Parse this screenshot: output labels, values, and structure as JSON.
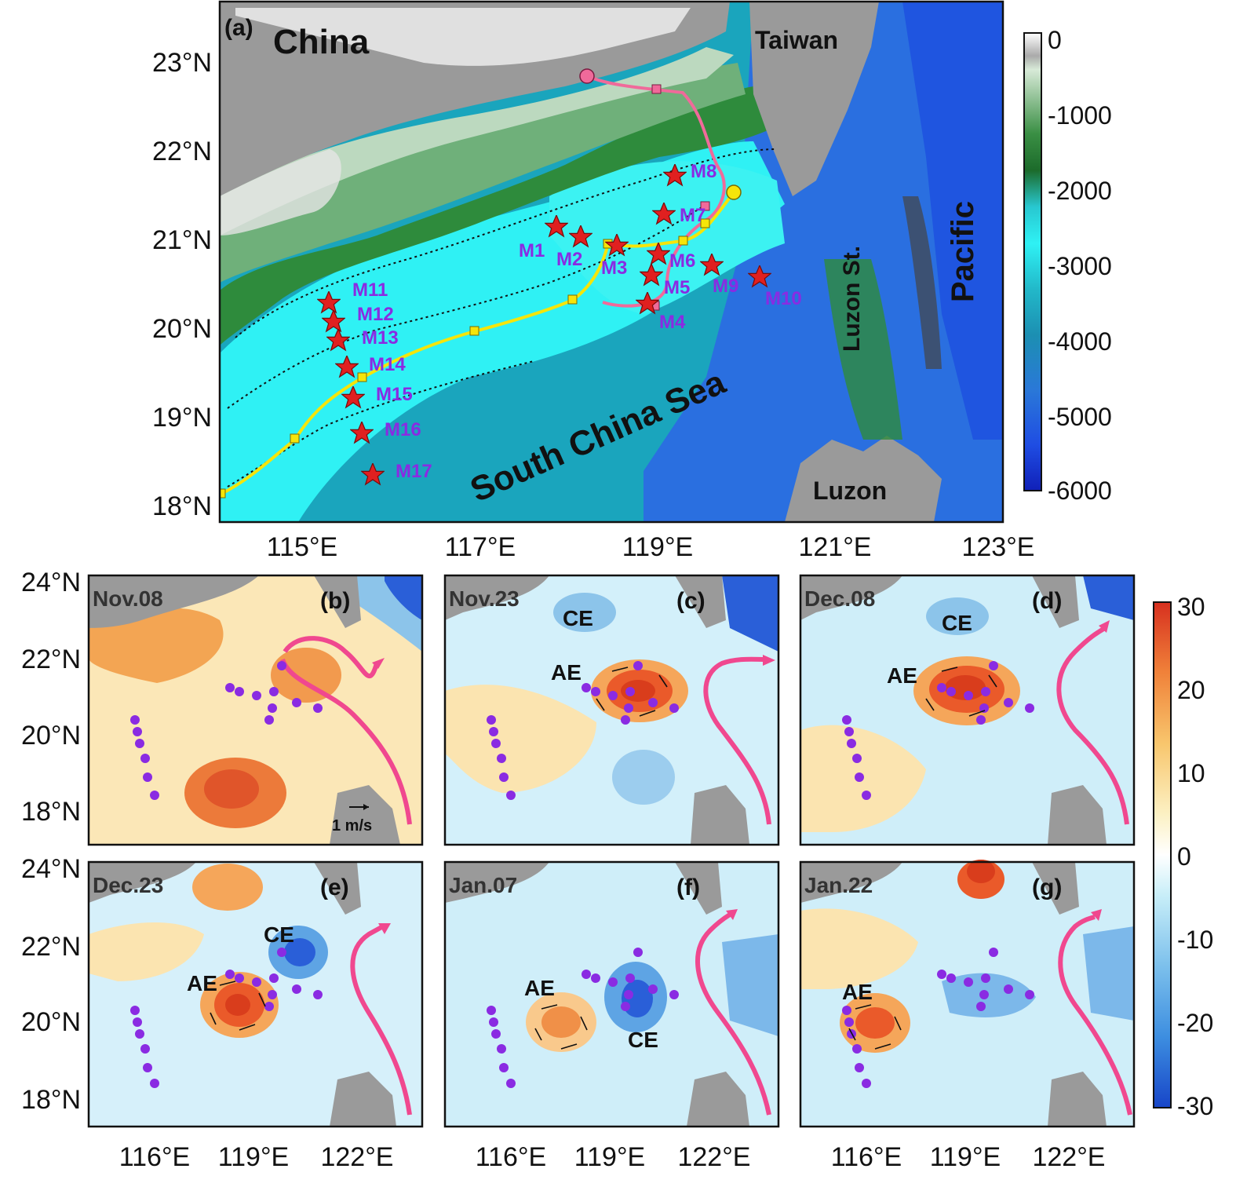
{
  "top_panel": {
    "label": "(a)",
    "places": {
      "china": "China",
      "taiwan": "Taiwan",
      "pacific": "Pacific",
      "luzon_strait": "Luzon St.",
      "scs": "South China Sea",
      "luzon": "Luzon"
    },
    "lat_ticks": [
      "23°N",
      "22°N",
      "21°N",
      "20°N",
      "19°N",
      "18°N"
    ],
    "lon_ticks": [
      "115°E",
      "117°E",
      "119°E",
      "121°E",
      "123°E"
    ],
    "colorbar_ticks": [
      "0",
      "-1000",
      "-2000",
      "-3000",
      "-4000",
      "-5000",
      "-6000"
    ],
    "moorings": [
      "M1",
      "M2",
      "M3",
      "M4",
      "M5",
      "M6",
      "M7",
      "M8",
      "M9",
      "M10",
      "M11",
      "M12",
      "M13",
      "M14",
      "M15",
      "M16",
      "M17"
    ]
  },
  "lower_panels": [
    {
      "id": "b",
      "label": "(b)",
      "date": "Nov.08",
      "eddies": [],
      "scale": "1 m/s"
    },
    {
      "id": "c",
      "label": "(c)",
      "date": "Nov.23",
      "eddies": [
        "CE",
        "AE"
      ]
    },
    {
      "id": "d",
      "label": "(d)",
      "date": "Dec.08",
      "eddies": [
        "CE",
        "AE"
      ]
    },
    {
      "id": "e",
      "label": "(e)",
      "date": "Dec.23",
      "eddies": [
        "CE",
        "AE"
      ]
    },
    {
      "id": "f",
      "label": "(f)",
      "date": "Jan.07",
      "eddies": [
        "AE",
        "CE"
      ]
    },
    {
      "id": "g",
      "label": "(g)",
      "date": "Jan.22",
      "eddies": [
        "AE"
      ]
    }
  ],
  "lower_lat_ticks": [
    "24°N",
    "22°N",
    "20°N",
    "18°N"
  ],
  "lower_lon_ticks": [
    "116°E",
    "119°E",
    "122°E"
  ],
  "colorbar2_ticks": [
    "30",
    "20",
    "10",
    "0",
    "-10",
    "-20",
    "-30"
  ],
  "colors": {
    "land": "#9a9a9a",
    "shelf_white": "#eeeeee",
    "green_dark": "#2e8b3c",
    "cyan": "#22e0e6",
    "teal": "#1aa5bd",
    "blue": "#2a6fe0",
    "kuroshio": "#f0488f",
    "track_yellow": "#f5e50a",
    "star": "#e02020"
  }
}
